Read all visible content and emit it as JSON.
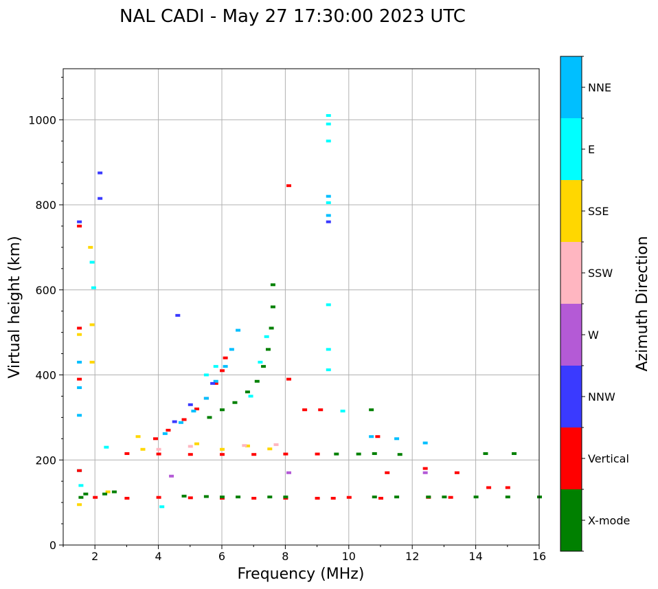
{
  "chart_data": {
    "type": "scatter",
    "title": "NAL CADI - May 27 17:30:00 2023 UTC",
    "xlabel": "Frequency (MHz)",
    "ylabel": "Virtual height (km)",
    "xlim": [
      1,
      16
    ],
    "ylim": [
      0,
      1120
    ],
    "xticks": [
      2,
      4,
      6,
      8,
      10,
      12,
      14,
      16
    ],
    "yticks": [
      0,
      200,
      400,
      600,
      800,
      1000
    ],
    "grid": true,
    "colorbar": {
      "title": "Azimuth Direction",
      "categories": [
        {
          "label": "X-mode",
          "color": "#008000"
        },
        {
          "label": "Vertical",
          "color": "#ff0000"
        },
        {
          "label": "NNW",
          "color": "#3a3aff"
        },
        {
          "label": "W",
          "color": "#b45ad6"
        },
        {
          "label": "SSW",
          "color": "#ffb6c1"
        },
        {
          "label": "SSE",
          "color": "#ffd700"
        },
        {
          "label": "E",
          "color": "#00ffff"
        },
        {
          "label": "NNE",
          "color": "#00bfff"
        }
      ]
    },
    "segments": [
      {
        "category": "Vertical",
        "points": [
          [
            2.0,
            112
          ],
          [
            3.0,
            110
          ],
          [
            4.0,
            112
          ],
          [
            5.0,
            111
          ],
          [
            6.0,
            110
          ],
          [
            7.0,
            110
          ],
          [
            8.0,
            110
          ],
          [
            9.0,
            110
          ],
          [
            9.5,
            110
          ],
          [
            10.0,
            112
          ],
          [
            11.0,
            110
          ],
          [
            12.5,
            112
          ],
          [
            13.2,
            112
          ]
        ]
      },
      {
        "category": "X-mode",
        "points": [
          [
            4.8,
            115
          ],
          [
            5.5,
            114
          ],
          [
            6.0,
            113
          ],
          [
            6.5,
            113
          ],
          [
            7.5,
            113
          ],
          [
            8.0,
            113
          ],
          [
            10.8,
            113
          ],
          [
            11.5,
            113
          ],
          [
            12.5,
            113
          ],
          [
            13.0,
            113
          ],
          [
            14.0,
            113
          ],
          [
            15.0,
            113
          ],
          [
            16.0,
            113
          ]
        ]
      },
      {
        "category": "Vertical",
        "points": [
          [
            3.0,
            215
          ],
          [
            4.0,
            214
          ],
          [
            5.0,
            213
          ],
          [
            6.0,
            213
          ],
          [
            7.0,
            213
          ],
          [
            8.0,
            214
          ],
          [
            9.0,
            214
          ]
        ]
      },
      {
        "category": "X-mode",
        "points": [
          [
            9.6,
            214
          ],
          [
            10.3,
            214
          ],
          [
            10.8,
            215
          ],
          [
            11.6,
            213
          ],
          [
            14.3,
            215
          ],
          [
            15.2,
            215
          ]
        ]
      },
      {
        "category": "Vertical",
        "points": [
          [
            3.9,
            250
          ],
          [
            4.3,
            270
          ],
          [
            4.8,
            295
          ],
          [
            5.2,
            320
          ],
          [
            5.5,
            345
          ],
          [
            5.8,
            380
          ],
          [
            6.0,
            410
          ],
          [
            6.1,
            440
          ]
        ]
      },
      {
        "category": "NNE",
        "points": [
          [
            4.2,
            262
          ],
          [
            4.7,
            288
          ],
          [
            5.1,
            315
          ],
          [
            5.5,
            345
          ],
          [
            5.8,
            385
          ],
          [
            6.1,
            420
          ],
          [
            6.3,
            460
          ],
          [
            6.5,
            505
          ]
        ]
      },
      {
        "category": "X-mode",
        "points": [
          [
            5.6,
            300
          ],
          [
            6.0,
            318
          ],
          [
            6.4,
            335
          ],
          [
            6.8,
            360
          ],
          [
            7.1,
            385
          ],
          [
            7.3,
            420
          ],
          [
            7.45,
            460
          ],
          [
            7.55,
            510
          ],
          [
            7.6,
            560
          ]
        ]
      },
      {
        "category": "NNW",
        "points": [
          [
            4.5,
            290
          ],
          [
            5.0,
            330
          ],
          [
            5.7,
            380
          ]
        ]
      },
      {
        "category": "E",
        "points": [
          [
            5.5,
            400
          ],
          [
            5.8,
            420
          ],
          [
            6.9,
            350
          ],
          [
            7.2,
            430
          ],
          [
            7.4,
            490
          ]
        ]
      },
      {
        "category": "SSE",
        "points": [
          [
            3.5,
            225
          ],
          [
            5.2,
            238
          ],
          [
            6.0,
            225
          ],
          [
            6.8,
            233
          ],
          [
            7.5,
            226
          ],
          [
            1.5,
            95
          ],
          [
            2.4,
            125
          ]
        ]
      },
      {
        "category": "SSW",
        "points": [
          [
            4.0,
            225
          ],
          [
            5.0,
            232
          ],
          [
            6.7,
            234
          ],
          [
            7.7,
            236
          ]
        ]
      },
      {
        "category": "W",
        "points": [
          [
            4.4,
            162
          ],
          [
            8.1,
            170
          ],
          [
            12.4,
            170
          ]
        ]
      },
      {
        "category": "X-mode",
        "points": [
          [
            1.55,
            112
          ],
          [
            1.7,
            120
          ],
          [
            2.3,
            120
          ],
          [
            2.6,
            125
          ]
        ]
      },
      {
        "category": "E",
        "points": [
          [
            1.5,
            175
          ],
          [
            1.55,
            140
          ],
          [
            1.9,
            665
          ],
          [
            1.95,
            605
          ],
          [
            9.35,
            1010
          ],
          [
            9.35,
            990
          ],
          [
            9.35,
            950
          ],
          [
            9.35,
            805
          ],
          [
            9.35,
            565
          ],
          [
            9.35,
            460
          ],
          [
            9.35,
            412
          ],
          [
            9.8,
            315
          ],
          [
            2.35,
            230
          ],
          [
            4.1,
            90
          ]
        ]
      },
      {
        "category": "NNE",
        "points": [
          [
            1.5,
            305
          ],
          [
            1.5,
            370
          ],
          [
            1.5,
            430
          ],
          [
            9.35,
            820
          ],
          [
            9.35,
            775
          ],
          [
            10.7,
            255
          ],
          [
            11.5,
            250
          ],
          [
            12.4,
            240
          ]
        ]
      },
      {
        "category": "Vertical",
        "points": [
          [
            1.5,
            750
          ],
          [
            1.5,
            510
          ],
          [
            1.5,
            390
          ],
          [
            1.5,
            175
          ],
          [
            8.1,
            845
          ],
          [
            8.1,
            390
          ],
          [
            8.6,
            318
          ],
          [
            9.1,
            318
          ],
          [
            10.9,
            255
          ],
          [
            11.2,
            170
          ],
          [
            12.4,
            180
          ],
          [
            13.4,
            170
          ],
          [
            14.4,
            135
          ],
          [
            15.0,
            135
          ]
        ]
      },
      {
        "category": "NNW",
        "points": [
          [
            1.5,
            760
          ],
          [
            2.15,
            875
          ],
          [
            2.15,
            815
          ],
          [
            9.35,
            760
          ],
          [
            4.6,
            540
          ]
        ]
      },
      {
        "category": "X-mode",
        "points": [
          [
            10.7,
            318
          ],
          [
            7.6,
            612
          ]
        ]
      },
      {
        "category": "SSE",
        "points": [
          [
            1.85,
            700
          ],
          [
            1.9,
            518
          ],
          [
            1.5,
            495
          ],
          [
            1.9,
            430
          ],
          [
            3.35,
            255
          ]
        ]
      }
    ]
  }
}
